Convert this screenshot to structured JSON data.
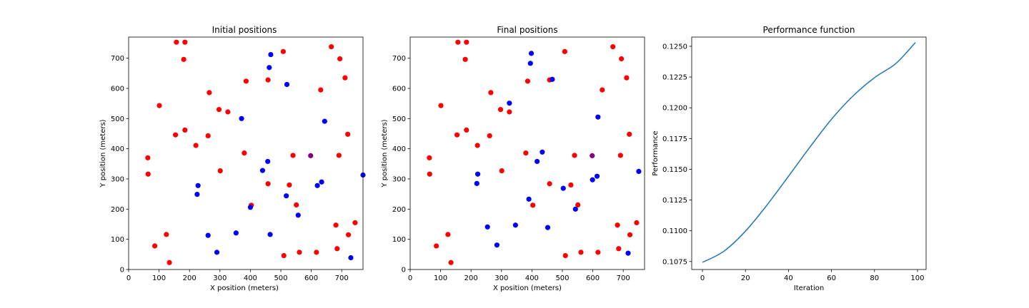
{
  "chart_data": [
    {
      "type": "scatter",
      "title": "Initial positions",
      "xlabel": "X position (meters)",
      "ylabel": "Y position (meters)",
      "xlim": [
        0,
        770
      ],
      "ylim": [
        0,
        770
      ],
      "xticks": [
        0,
        100,
        200,
        300,
        400,
        500,
        600,
        700
      ],
      "yticks": [
        0,
        100,
        200,
        300,
        400,
        500,
        600,
        700
      ],
      "grid": false,
      "colors": {
        "red": "#ff0000",
        "blue": "#0000ff",
        "purple": "#800080"
      },
      "series": [
        {
          "color": "red",
          "points": [
            [
              157,
              753
            ],
            [
              185,
              753
            ],
            [
              181,
              696
            ],
            [
              508,
              722
            ],
            [
              666,
              738
            ],
            [
              694,
              698
            ],
            [
              711,
              635
            ],
            [
              386,
              624
            ],
            [
              458,
              628
            ],
            [
              101,
              543
            ],
            [
              265,
              586
            ],
            [
              297,
              530
            ],
            [
              326,
              522
            ],
            [
              631,
              595
            ],
            [
              154,
              446
            ],
            [
              185,
              462
            ],
            [
              221,
              411
            ],
            [
              261,
              443
            ],
            [
              63,
              370
            ],
            [
              64,
              316
            ],
            [
              301,
              327
            ],
            [
              380,
              386
            ],
            [
              540,
              378
            ],
            [
              691,
              378
            ],
            [
              720,
              448
            ],
            [
              458,
              284
            ],
            [
              528,
              280
            ],
            [
              551,
              214
            ],
            [
              403,
              213
            ],
            [
              124,
              116
            ],
            [
              86,
              78
            ],
            [
              134,
              23
            ],
            [
              510,
              46
            ],
            [
              561,
              57
            ],
            [
              617,
              57
            ],
            [
              681,
              147
            ],
            [
              685,
              69
            ],
            [
              722,
              115
            ],
            [
              744,
              155
            ]
          ]
        },
        {
          "color": "blue",
          "points": [
            [
              467,
              712
            ],
            [
              462,
              669
            ],
            [
              520,
              613
            ],
            [
              371,
              500
            ],
            [
              644,
              491
            ],
            [
              457,
              358
            ],
            [
              440,
              328
            ],
            [
              228,
              278
            ],
            [
              225,
              249
            ],
            [
              261,
              113
            ],
            [
              353,
              121
            ],
            [
              290,
              57
            ],
            [
              400,
              206
            ],
            [
              465,
              116
            ],
            [
              518,
              244
            ],
            [
              557,
              180
            ],
            [
              620,
              278
            ],
            [
              634,
              290
            ],
            [
              770,
              313
            ],
            [
              730,
              39
            ]
          ]
        },
        {
          "color": "purple",
          "points": [
            [
              598,
              377
            ]
          ]
        }
      ]
    },
    {
      "type": "scatter",
      "title": "Final positions",
      "xlabel": "X position (meters)",
      "ylabel": "Y position (meters)",
      "xlim": [
        0,
        770
      ],
      "ylim": [
        0,
        770
      ],
      "xticks": [
        0,
        100,
        200,
        300,
        400,
        500,
        600,
        700
      ],
      "yticks": [
        0,
        100,
        200,
        300,
        400,
        500,
        600,
        700
      ],
      "grid": false,
      "colors": {
        "red": "#ff0000",
        "blue": "#0000ff",
        "purple": "#800080"
      },
      "series": [
        {
          "color": "red",
          "points": [
            [
              157,
              753
            ],
            [
              185,
              753
            ],
            [
              181,
              696
            ],
            [
              508,
              722
            ],
            [
              666,
              738
            ],
            [
              694,
              698
            ],
            [
              711,
              635
            ],
            [
              386,
              624
            ],
            [
              458,
              628
            ],
            [
              101,
              543
            ],
            [
              265,
              586
            ],
            [
              297,
              530
            ],
            [
              326,
              522
            ],
            [
              631,
              595
            ],
            [
              154,
              446
            ],
            [
              185,
              462
            ],
            [
              221,
              411
            ],
            [
              261,
              443
            ],
            [
              63,
              370
            ],
            [
              64,
              316
            ],
            [
              301,
              327
            ],
            [
              380,
              386
            ],
            [
              540,
              378
            ],
            [
              691,
              378
            ],
            [
              720,
              448
            ],
            [
              458,
              284
            ],
            [
              528,
              280
            ],
            [
              551,
              214
            ],
            [
              403,
              213
            ],
            [
              124,
              116
            ],
            [
              86,
              78
            ],
            [
              134,
              23
            ],
            [
              510,
              46
            ],
            [
              561,
              57
            ],
            [
              617,
              57
            ],
            [
              681,
              147
            ],
            [
              685,
              69
            ],
            [
              722,
              115
            ],
            [
              744,
              155
            ]
          ]
        },
        {
          "color": "blue",
          "points": [
            [
              398,
              716
            ],
            [
              395,
              683
            ],
            [
              467,
              630
            ],
            [
              326,
              551
            ],
            [
              617,
              505
            ],
            [
              434,
              389
            ],
            [
              417,
              358
            ],
            [
              222,
              316
            ],
            [
              219,
              285
            ],
            [
              254,
              141
            ],
            [
              346,
              147
            ],
            [
              285,
              81
            ],
            [
              390,
              233
            ],
            [
              452,
              139
            ],
            [
              503,
              269
            ],
            [
              543,
              200
            ],
            [
              599,
              297
            ],
            [
              614,
              309
            ],
            [
              751,
              325
            ],
            [
              716,
              54
            ]
          ]
        },
        {
          "color": "purple",
          "points": [
            [
              598,
              377
            ]
          ]
        }
      ]
    },
    {
      "type": "line",
      "title": "Performance function",
      "xlabel": "Iteration",
      "ylabel": "Performance",
      "xlim": [
        -5,
        104
      ],
      "ylim": [
        0.10685,
        0.12575
      ],
      "xticks": [
        0,
        20,
        40,
        60,
        80,
        100
      ],
      "yticks": [
        "0.1075",
        "0.1100",
        "0.1125",
        "0.1150",
        "0.1175",
        "0.1200",
        "0.1225",
        "0.1250"
      ],
      "grid": false,
      "colors": {
        "line": "#1f77b4"
      },
      "series": [
        {
          "x": [
            0,
            10,
            20,
            30,
            40,
            50,
            60,
            70,
            80,
            90,
            99
          ],
          "y": [
            0.10743,
            0.10834,
            0.10997,
            0.11209,
            0.11443,
            0.11681,
            0.11907,
            0.12096,
            0.12245,
            0.12361,
            0.12531
          ]
        }
      ]
    }
  ]
}
